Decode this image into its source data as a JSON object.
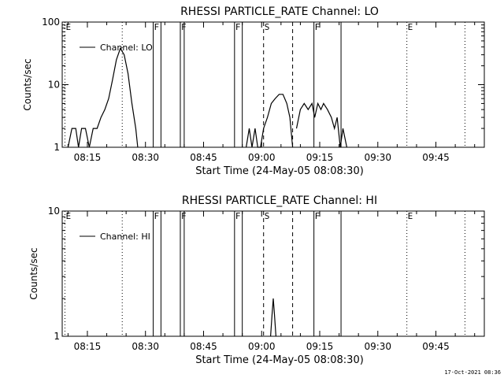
{
  "footer": {
    "stamp": "17-Oct-2021 08:36"
  },
  "chart_data": [
    {
      "type": "line",
      "title": "RHESSI PARTICLE_RATE Channel: LO",
      "xlabel": "Start Time (24-May-05 08:08:30)",
      "ylabel": "Counts/sec",
      "x_unit": "minutes after 08:08:30",
      "xlim": [
        0,
        109
      ],
      "xticks": [
        6.5,
        21.5,
        36.5,
        51.5,
        66.5,
        81.5,
        96.5
      ],
      "xtick_labels": [
        "08:15",
        "08:30",
        "08:45",
        "09:00",
        "09:15",
        "09:30",
        "09:45"
      ],
      "yscale": "log",
      "ylim": [
        1,
        100
      ],
      "ytick_labels": [
        "1",
        "10",
        "100"
      ],
      "legend": {
        "entry": "Channel: LO",
        "position": "top-left"
      },
      "markers": [
        {
          "x": 0.7,
          "label": "E",
          "style": "dotted"
        },
        {
          "x": 15.5,
          "label": "",
          "style": "dotted"
        },
        {
          "x": 23.5,
          "label": "F",
          "style": "solid"
        },
        {
          "x": 25.5,
          "label": "",
          "style": "solid"
        },
        {
          "x": 30.5,
          "label": "F",
          "style": "solid"
        },
        {
          "x": 31.5,
          "label": "",
          "style": "solid"
        },
        {
          "x": 44.5,
          "label": "F",
          "style": "solid"
        },
        {
          "x": 46.5,
          "label": "",
          "style": "solid"
        },
        {
          "x": 52.0,
          "label": "S",
          "style": "dashed"
        },
        {
          "x": 59.5,
          "label": "",
          "style": "dashed"
        },
        {
          "x": 65.0,
          "label": "F",
          "style": "solid"
        },
        {
          "x": 72.0,
          "label": "",
          "style": "solid"
        },
        {
          "x": 89.0,
          "label": "E",
          "style": "dotted"
        },
        {
          "x": 104.0,
          "label": "",
          "style": "dotted"
        }
      ],
      "series": [
        {
          "segments": [
            {
              "x": [
                1.5,
                2.5,
                3.5,
                4.2,
                5.0,
                6.0,
                7.0,
                8.0,
                9.0,
                10.0,
                11.0,
                12.0,
                13.0,
                14.0,
                15.0,
                16.0,
                17.0,
                18.0,
                19.0,
                19.5
              ],
              "y": [
                1,
                2,
                2,
                1,
                2,
                2,
                1,
                2,
                2,
                3,
                4,
                6,
                12,
                25,
                38,
                30,
                15,
                5,
                2,
                1
              ]
            },
            {
              "x": [
                47.5,
                48.3,
                49.0,
                49.8,
                50.5,
                51.2,
                52.0,
                53.0,
                54.0,
                55.0,
                56.0,
                57.0,
                58.0,
                58.8,
                59.5
              ],
              "y": [
                1,
                2,
                1,
                2,
                1,
                1,
                2,
                3,
                5,
                6,
                7,
                7,
                5,
                3,
                1
              ]
            },
            {
              "x": [
                60.5,
                61.5,
                62.5,
                63.5,
                64.5,
                65.2,
                66.0,
                66.8,
                67.5,
                68.5,
                69.5,
                70.3,
                71.0,
                71.8,
                72.5,
                73.5
              ],
              "y": [
                2,
                4,
                5,
                4,
                5,
                3,
                5,
                4,
                5,
                4,
                3,
                2,
                3,
                1,
                2,
                1
              ]
            }
          ]
        }
      ]
    },
    {
      "type": "line",
      "title": "RHESSI PARTICLE_RATE Channel: HI",
      "xlabel": "Start Time (24-May-05 08:08:30)",
      "ylabel": "Counts/sec",
      "x_unit": "minutes after 08:08:30",
      "xlim": [
        0,
        109
      ],
      "xticks": [
        6.5,
        21.5,
        36.5,
        51.5,
        66.5,
        81.5,
        96.5
      ],
      "xtick_labels": [
        "08:15",
        "08:30",
        "08:45",
        "09:00",
        "09:15",
        "09:30",
        "09:45"
      ],
      "yscale": "log",
      "ylim": [
        1,
        10
      ],
      "ytick_labels": [
        "1",
        "10"
      ],
      "legend": {
        "entry": "Channel: HI",
        "position": "top-left"
      },
      "markers": [
        {
          "x": 0.7,
          "label": "E",
          "style": "dotted"
        },
        {
          "x": 15.5,
          "label": "",
          "style": "dotted"
        },
        {
          "x": 23.5,
          "label": "F",
          "style": "solid"
        },
        {
          "x": 25.5,
          "label": "",
          "style": "solid"
        },
        {
          "x": 30.5,
          "label": "F",
          "style": "solid"
        },
        {
          "x": 31.5,
          "label": "",
          "style": "solid"
        },
        {
          "x": 44.5,
          "label": "F",
          "style": "solid"
        },
        {
          "x": 46.5,
          "label": "",
          "style": "solid"
        },
        {
          "x": 52.0,
          "label": "S",
          "style": "dashed"
        },
        {
          "x": 59.5,
          "label": "",
          "style": "dashed"
        },
        {
          "x": 65.0,
          "label": "F",
          "style": "solid"
        },
        {
          "x": 72.0,
          "label": "",
          "style": "solid"
        },
        {
          "x": 89.0,
          "label": "E",
          "style": "dotted"
        },
        {
          "x": 104.0,
          "label": "",
          "style": "dotted"
        }
      ],
      "series": [
        {
          "segments": [
            {
              "x": [
                53.8,
                54.2,
                54.5,
                54.8,
                55.2
              ],
              "y": [
                1,
                1.5,
                2,
                1.5,
                1
              ]
            }
          ]
        }
      ]
    }
  ]
}
